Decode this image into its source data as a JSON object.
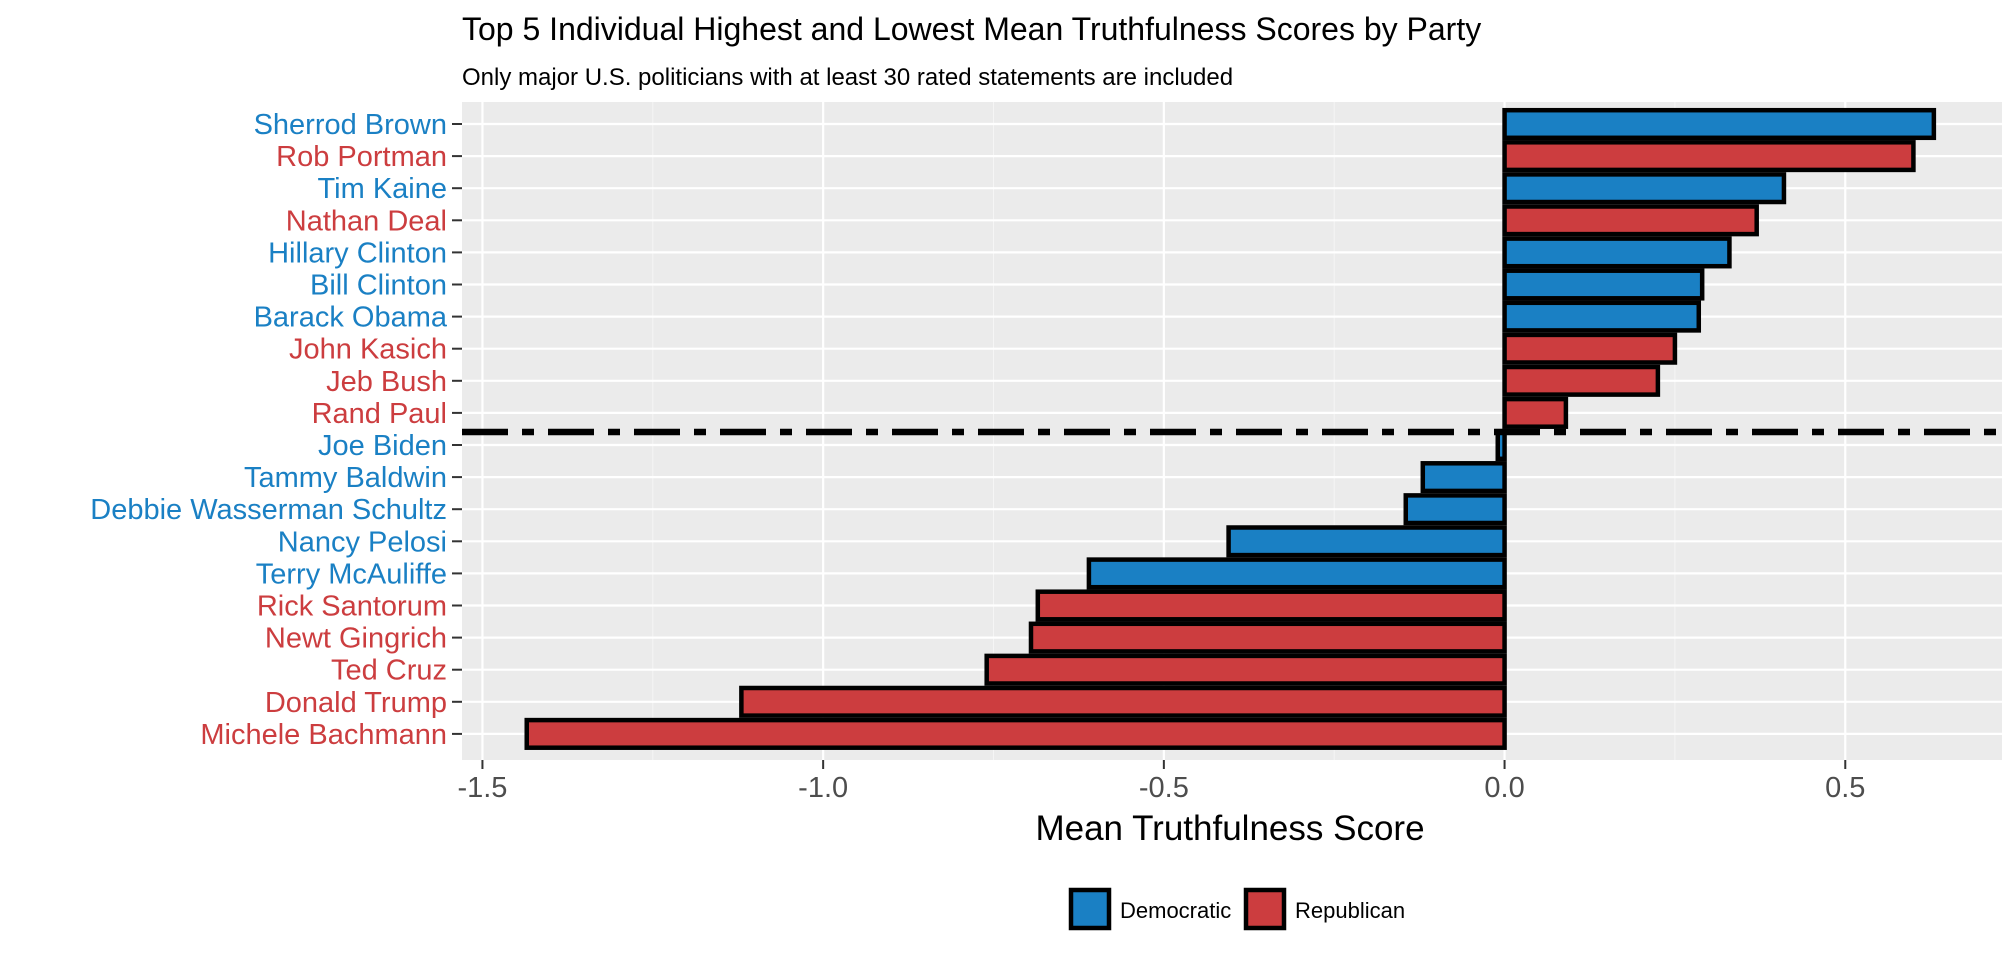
{
  "chart_data": {
    "type": "bar",
    "orientation": "horizontal",
    "title": "Top 5 Individual Highest and Lowest Mean Truthfulness Scores by Party",
    "subtitle": "Only major U.S. politicians with at least 30 rated statements are included",
    "xlabel": "Mean Truthfulness Score",
    "ylabel": "",
    "xlim": [
      -1.53,
      0.73
    ],
    "xticks": [
      {
        "value": -1.5,
        "label": "-1.5"
      },
      {
        "value": -1.0,
        "label": "-1.0"
      },
      {
        "value": -0.5,
        "label": "-0.5"
      },
      {
        "value": 0.0,
        "label": "0.0"
      },
      {
        "value": 0.5,
        "label": "0.5"
      }
    ],
    "reference_line": {
      "style": "dash-dot",
      "between": [
        "Rand Paul",
        "Joe Biden"
      ]
    },
    "grid": true,
    "legend_position": "bottom",
    "colors": {
      "Democratic": "#1a80c4",
      "Republican": "#cc3d3f"
    },
    "bars": [
      {
        "name": "Sherrod Brown",
        "party": "Democratic",
        "value": 0.63
      },
      {
        "name": "Rob Portman",
        "party": "Republican",
        "value": 0.6
      },
      {
        "name": "Tim Kaine",
        "party": "Democratic",
        "value": 0.41
      },
      {
        "name": "Nathan Deal",
        "party": "Republican",
        "value": 0.37
      },
      {
        "name": "Hillary Clinton",
        "party": "Democratic",
        "value": 0.33
      },
      {
        "name": "Bill Clinton",
        "party": "Democratic",
        "value": 0.29
      },
      {
        "name": "Barack Obama",
        "party": "Democratic",
        "value": 0.285
      },
      {
        "name": "John Kasich",
        "party": "Republican",
        "value": 0.25
      },
      {
        "name": "Jeb Bush",
        "party": "Republican",
        "value": 0.225
      },
      {
        "name": "Rand Paul",
        "party": "Republican",
        "value": 0.09
      },
      {
        "name": "Joe Biden",
        "party": "Democratic",
        "value": -0.01
      },
      {
        "name": "Tammy Baldwin",
        "party": "Democratic",
        "value": -0.12
      },
      {
        "name": "Debbie Wasserman Schultz",
        "party": "Democratic",
        "value": -0.145
      },
      {
        "name": "Nancy Pelosi",
        "party": "Democratic",
        "value": -0.405
      },
      {
        "name": "Terry McAuliffe",
        "party": "Democratic",
        "value": -0.61
      },
      {
        "name": "Rick Santorum",
        "party": "Republican",
        "value": -0.685
      },
      {
        "name": "Newt Gingrich",
        "party": "Republican",
        "value": -0.695
      },
      {
        "name": "Ted Cruz",
        "party": "Republican",
        "value": -0.76
      },
      {
        "name": "Donald Trump",
        "party": "Republican",
        "value": -1.12
      },
      {
        "name": "Michele Bachmann",
        "party": "Republican",
        "value": -1.435
      }
    ],
    "legend": [
      {
        "label": "Democratic",
        "color": "#1a80c4"
      },
      {
        "label": "Republican",
        "color": "#cc3d3f"
      }
    ]
  }
}
